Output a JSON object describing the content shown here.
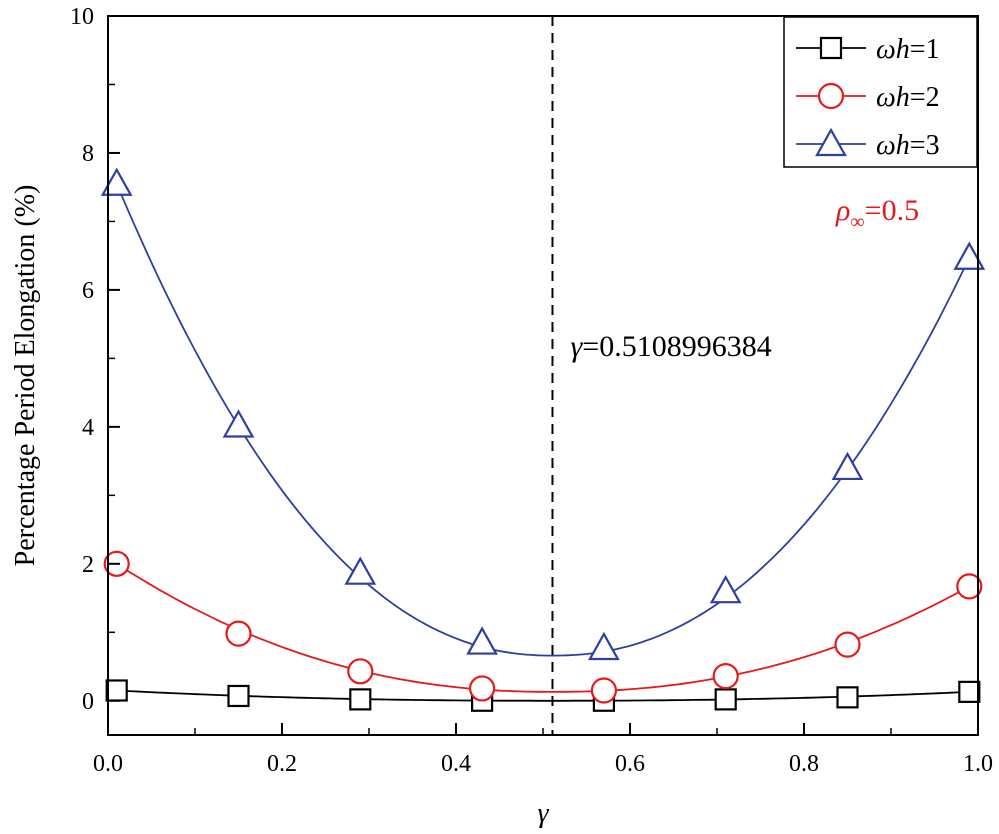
{
  "chart_data": {
    "type": "line",
    "title": "",
    "xlabel": "γ",
    "ylabel": "Percentage Period Elongation (%)",
    "xlim": [
      0.0,
      1.0
    ],
    "ylim": [
      -0.5,
      10
    ],
    "xticks": [
      0.0,
      0.2,
      0.4,
      0.6,
      0.8,
      1.0
    ],
    "xtick_labels": [
      "0.0",
      "0.2",
      "0.4",
      "0.6",
      "0.8",
      "1.0"
    ],
    "yticks": [
      0,
      2,
      4,
      6,
      8,
      10
    ],
    "ytick_labels": [
      "0",
      "2",
      "4",
      "6",
      "8",
      "10"
    ],
    "grid": false,
    "legend_position": "top-right",
    "series": [
      {
        "name": "ωh=1",
        "legend_symbol": "ωh",
        "legend_value": "=1",
        "color": "#000000",
        "marker": "square",
        "x": [
          0.01,
          0.15,
          0.29,
          0.43,
          0.57,
          0.71,
          0.85,
          0.99
        ],
        "y": [
          0.15,
          0.07,
          0.02,
          0.0,
          0.0,
          0.02,
          0.05,
          0.13
        ],
        "curve_peak": 0.15,
        "curve_min": 0.0
      },
      {
        "name": "ωh=2",
        "legend_symbol": "ωh",
        "legend_value": "=2",
        "color": "#e41a1c",
        "marker": "circle",
        "x": [
          0.01,
          0.15,
          0.29,
          0.43,
          0.57,
          0.71,
          0.85,
          0.99
        ],
        "y": [
          2.0,
          0.98,
          0.43,
          0.18,
          0.15,
          0.36,
          0.82,
          1.67
        ],
        "curve_peak": 2.0,
        "curve_min": 0.13
      },
      {
        "name": "ωh=3",
        "legend_symbol": "ωh",
        "legend_value": "=3",
        "color": "#2e3f9e",
        "marker": "triangle",
        "x": [
          0.01,
          0.15,
          0.29,
          0.43,
          0.57,
          0.71,
          0.85,
          0.99
        ],
        "y": [
          7.55,
          4.02,
          1.87,
          0.85,
          0.77,
          1.6,
          3.4,
          6.47
        ],
        "curve_peak": 7.55,
        "curve_min": 0.66
      }
    ],
    "reference_line": {
      "x": 0.5108996384,
      "style": "dashed",
      "label_symbol": "γ",
      "label_value": "=0.5108996384"
    },
    "annotations": [
      {
        "symbol": "ρ",
        "subscript": "∞",
        "value": "=0.5",
        "color": "#e41a1c"
      }
    ]
  }
}
